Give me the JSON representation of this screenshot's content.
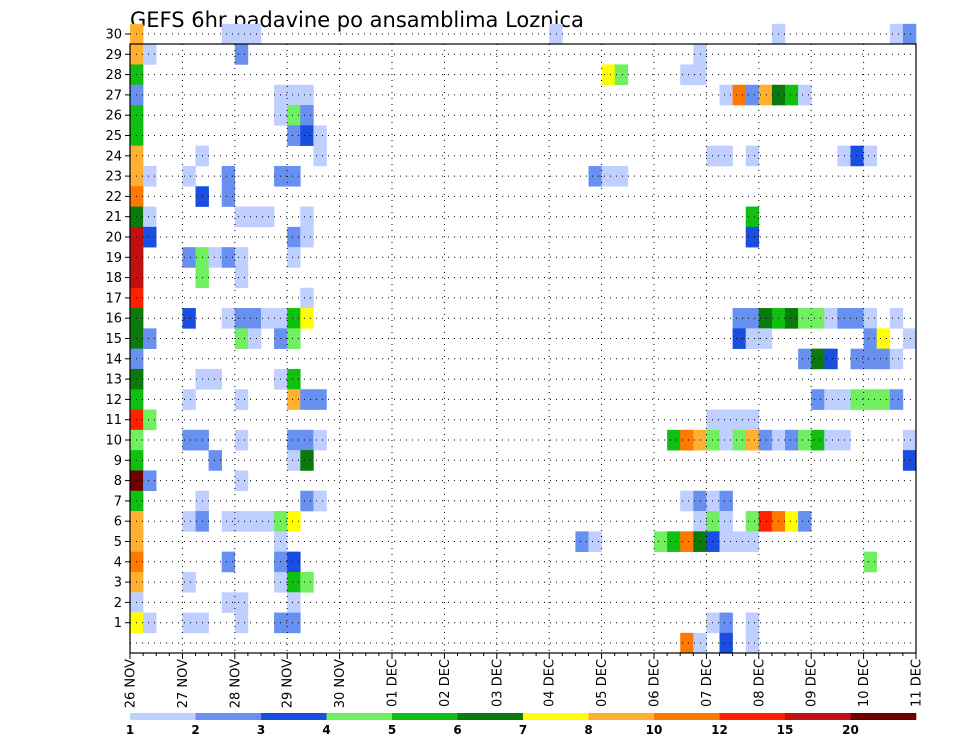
{
  "chart_data": {
    "type": "heatmap",
    "title": "GEFS 6hr padavine po ansamblima Loznica",
    "y_categories": [
      "1",
      "2",
      "3",
      "4",
      "5",
      "6",
      "7",
      "8",
      "9",
      "10",
      "11",
      "12",
      "13",
      "14",
      "15",
      "16",
      "17",
      "18",
      "19",
      "20",
      "21",
      "22",
      "23",
      "24",
      "25",
      "26",
      "27",
      "28",
      "29",
      "30"
    ],
    "x_tick_labels": [
      "26 NOV",
      "27 NOV",
      "28 NOV",
      "29 NOV",
      "30 NOV",
      "01 DEC",
      "02 DEC",
      "03 DEC",
      "04 DEC",
      "05 DEC",
      "06 DEC",
      "07 DEC",
      "08 DEC",
      "09 DEC",
      "10 DEC",
      "11 DEC"
    ],
    "time_steps": 60,
    "steps_per_day": 4,
    "grid": true,
    "legend": {
      "placement": "bottom",
      "tick_labels": [
        "1",
        "2",
        "3",
        "4",
        "5",
        "6",
        "7",
        "8",
        "10",
        "12",
        "15",
        "20"
      ],
      "colors": [
        "#bfcfff",
        "#6890f0",
        "#1a4ee0",
        "#70f060",
        "#10c010",
        "#0a7a0a",
        "#ffff00",
        "#ffb030",
        "#ff7800",
        "#ff2000",
        "#c01010",
        "#700000"
      ]
    },
    "cells": [
      [
        30,
        1,
        7
      ],
      [
        30,
        8,
        0
      ],
      [
        30,
        9,
        0
      ],
      [
        30,
        10,
        0
      ],
      [
        30,
        33,
        0
      ],
      [
        30,
        50,
        0
      ],
      [
        30,
        59,
        0
      ],
      [
        30,
        60,
        1
      ],
      [
        29,
        1,
        7
      ],
      [
        29,
        2,
        0
      ],
      [
        29,
        9,
        1
      ],
      [
        29,
        44,
        0
      ],
      [
        28,
        1,
        4
      ],
      [
        28,
        37,
        6
      ],
      [
        28,
        38,
        3
      ],
      [
        28,
        43,
        0
      ],
      [
        28,
        44,
        0
      ],
      [
        27,
        1,
        1
      ],
      [
        27,
        12,
        0
      ],
      [
        27,
        13,
        0
      ],
      [
        27,
        14,
        0
      ],
      [
        27,
        46,
        0
      ],
      [
        27,
        47,
        8
      ],
      [
        27,
        48,
        1
      ],
      [
        27,
        49,
        7
      ],
      [
        27,
        50,
        5
      ],
      [
        27,
        51,
        4
      ],
      [
        27,
        52,
        0
      ],
      [
        26,
        1,
        4
      ],
      [
        26,
        12,
        0
      ],
      [
        26,
        13,
        3
      ],
      [
        26,
        14,
        1
      ],
      [
        25,
        1,
        4
      ],
      [
        25,
        13,
        1
      ],
      [
        25,
        14,
        2
      ],
      [
        25,
        15,
        0
      ],
      [
        24,
        1,
        7
      ],
      [
        24,
        6,
        0
      ],
      [
        24,
        15,
        0
      ],
      [
        24,
        45,
        0
      ],
      [
        24,
        46,
        0
      ],
      [
        24,
        48,
        0
      ],
      [
        24,
        55,
        0
      ],
      [
        24,
        56,
        2
      ],
      [
        24,
        57,
        0
      ],
      [
        23,
        1,
        7
      ],
      [
        23,
        2,
        0
      ],
      [
        23,
        5,
        0
      ],
      [
        23,
        8,
        1
      ],
      [
        23,
        12,
        1
      ],
      [
        23,
        13,
        1
      ],
      [
        23,
        36,
        1
      ],
      [
        23,
        37,
        0
      ],
      [
        23,
        38,
        0
      ],
      [
        22,
        1,
        8
      ],
      [
        22,
        6,
        2
      ],
      [
        22,
        8,
        1
      ],
      [
        21,
        1,
        5
      ],
      [
        21,
        2,
        0
      ],
      [
        21,
        9,
        0
      ],
      [
        21,
        10,
        0
      ],
      [
        21,
        11,
        0
      ],
      [
        21,
        14,
        0
      ],
      [
        21,
        48,
        4
      ],
      [
        20,
        1,
        10
      ],
      [
        20,
        2,
        2
      ],
      [
        20,
        13,
        1
      ],
      [
        20,
        14,
        0
      ],
      [
        20,
        48,
        2
      ],
      [
        19,
        1,
        10
      ],
      [
        19,
        5,
        1
      ],
      [
        19,
        6,
        3
      ],
      [
        19,
        7,
        0
      ],
      [
        19,
        8,
        1
      ],
      [
        19,
        9,
        0
      ],
      [
        19,
        13,
        0
      ],
      [
        18,
        1,
        10
      ],
      [
        18,
        6,
        3
      ],
      [
        18,
        9,
        0
      ],
      [
        17,
        1,
        9
      ],
      [
        17,
        14,
        0
      ],
      [
        16,
        1,
        5
      ],
      [
        16,
        5,
        2
      ],
      [
        16,
        8,
        0
      ],
      [
        16,
        9,
        1
      ],
      [
        16,
        10,
        1
      ],
      [
        16,
        11,
        0
      ],
      [
        16,
        12,
        0
      ],
      [
        16,
        13,
        4
      ],
      [
        16,
        14,
        6
      ],
      [
        16,
        47,
        1
      ],
      [
        16,
        48,
        1
      ],
      [
        16,
        49,
        5
      ],
      [
        16,
        50,
        4
      ],
      [
        16,
        51,
        5
      ],
      [
        16,
        52,
        3
      ],
      [
        16,
        53,
        3
      ],
      [
        16,
        54,
        0
      ],
      [
        16,
        55,
        1
      ],
      [
        16,
        56,
        1
      ],
      [
        16,
        57,
        0
      ],
      [
        16,
        59,
        0
      ],
      [
        15,
        1,
        5
      ],
      [
        15,
        2,
        1
      ],
      [
        15,
        9,
        3
      ],
      [
        15,
        10,
        0
      ],
      [
        15,
        12,
        1
      ],
      [
        15,
        13,
        3
      ],
      [
        15,
        47,
        2
      ],
      [
        15,
        48,
        0
      ],
      [
        15,
        49,
        0
      ],
      [
        15,
        57,
        1
      ],
      [
        15,
        58,
        6
      ],
      [
        15,
        60,
        0
      ],
      [
        14,
        1,
        1
      ],
      [
        14,
        52,
        1
      ],
      [
        14,
        53,
        5
      ],
      [
        14,
        54,
        2
      ],
      [
        14,
        56,
        1
      ],
      [
        14,
        57,
        1
      ],
      [
        14,
        58,
        1
      ],
      [
        14,
        59,
        0
      ],
      [
        13,
        1,
        5
      ],
      [
        13,
        6,
        0
      ],
      [
        13,
        7,
        0
      ],
      [
        13,
        12,
        0
      ],
      [
        13,
        13,
        4
      ],
      [
        12,
        1,
        4
      ],
      [
        12,
        5,
        0
      ],
      [
        12,
        9,
        0
      ],
      [
        12,
        13,
        7
      ],
      [
        12,
        14,
        1
      ],
      [
        12,
        15,
        1
      ],
      [
        12,
        53,
        1
      ],
      [
        12,
        54,
        0
      ],
      [
        12,
        55,
        0
      ],
      [
        12,
        56,
        3
      ],
      [
        12,
        57,
        3
      ],
      [
        12,
        58,
        3
      ],
      [
        12,
        59,
        1
      ],
      [
        11,
        1,
        9
      ],
      [
        11,
        2,
        3
      ],
      [
        11,
        45,
        0
      ],
      [
        11,
        46,
        0
      ],
      [
        11,
        47,
        0
      ],
      [
        11,
        48,
        0
      ],
      [
        10,
        1,
        3
      ],
      [
        10,
        5,
        1
      ],
      [
        10,
        6,
        1
      ],
      [
        10,
        9,
        0
      ],
      [
        10,
        13,
        1
      ],
      [
        10,
        14,
        1
      ],
      [
        10,
        15,
        0
      ],
      [
        10,
        42,
        4
      ],
      [
        10,
        43,
        8
      ],
      [
        10,
        44,
        7
      ],
      [
        10,
        45,
        3
      ],
      [
        10,
        46,
        0
      ],
      [
        10,
        47,
        3
      ],
      [
        10,
        48,
        7
      ],
      [
        10,
        49,
        1
      ],
      [
        10,
        50,
        0
      ],
      [
        10,
        51,
        1
      ],
      [
        10,
        52,
        3
      ],
      [
        10,
        53,
        4
      ],
      [
        10,
        54,
        0
      ],
      [
        10,
        55,
        0
      ],
      [
        10,
        60,
        0
      ],
      [
        9,
        1,
        4
      ],
      [
        9,
        7,
        1
      ],
      [
        9,
        13,
        0
      ],
      [
        9,
        14,
        5
      ],
      [
        9,
        60,
        2
      ],
      [
        8,
        1,
        11
      ],
      [
        8,
        2,
        1
      ],
      [
        8,
        9,
        0
      ],
      [
        7,
        1,
        4
      ],
      [
        7,
        6,
        0
      ],
      [
        7,
        14,
        1
      ],
      [
        7,
        15,
        0
      ],
      [
        7,
        43,
        0
      ],
      [
        7,
        44,
        1
      ],
      [
        7,
        45,
        0
      ],
      [
        7,
        46,
        1
      ],
      [
        6,
        1,
        7
      ],
      [
        6,
        5,
        0
      ],
      [
        6,
        6,
        1
      ],
      [
        6,
        8,
        0
      ],
      [
        6,
        9,
        0
      ],
      [
        6,
        10,
        0
      ],
      [
        6,
        11,
        0
      ],
      [
        6,
        12,
        3
      ],
      [
        6,
        13,
        6
      ],
      [
        6,
        44,
        0
      ],
      [
        6,
        45,
        3
      ],
      [
        6,
        46,
        0
      ],
      [
        6,
        48,
        3
      ],
      [
        6,
        49,
        9
      ],
      [
        6,
        50,
        8
      ],
      [
        6,
        51,
        6
      ],
      [
        6,
        52,
        1
      ],
      [
        5,
        1,
        7
      ],
      [
        5,
        12,
        0
      ],
      [
        5,
        35,
        1
      ],
      [
        5,
        36,
        0
      ],
      [
        5,
        41,
        3
      ],
      [
        5,
        42,
        4
      ],
      [
        5,
        43,
        8
      ],
      [
        5,
        44,
        5
      ],
      [
        5,
        45,
        2
      ],
      [
        5,
        46,
        0
      ],
      [
        5,
        47,
        0
      ],
      [
        5,
        48,
        0
      ],
      [
        4,
        1,
        8
      ],
      [
        4,
        8,
        1
      ],
      [
        4,
        12,
        1
      ],
      [
        4,
        13,
        2
      ],
      [
        4,
        57,
        3
      ],
      [
        3,
        1,
        7
      ],
      [
        3,
        5,
        0
      ],
      [
        3,
        12,
        0
      ],
      [
        3,
        13,
        4
      ],
      [
        3,
        14,
        3
      ],
      [
        2,
        1,
        0
      ],
      [
        2,
        8,
        0
      ],
      [
        2,
        9,
        0
      ],
      [
        2,
        13,
        0
      ],
      [
        1,
        1,
        6
      ],
      [
        1,
        2,
        0
      ],
      [
        1,
        5,
        0
      ],
      [
        1,
        6,
        0
      ],
      [
        1,
        9,
        0
      ],
      [
        1,
        12,
        1
      ],
      [
        1,
        13,
        1
      ],
      [
        1,
        45,
        0
      ],
      [
        1,
        46,
        1
      ],
      [
        1,
        48,
        0
      ],
      [
        0,
        43,
        8
      ],
      [
        0,
        44,
        0
      ],
      [
        0,
        46,
        2
      ],
      [
        0,
        48,
        0
      ]
    ]
  }
}
